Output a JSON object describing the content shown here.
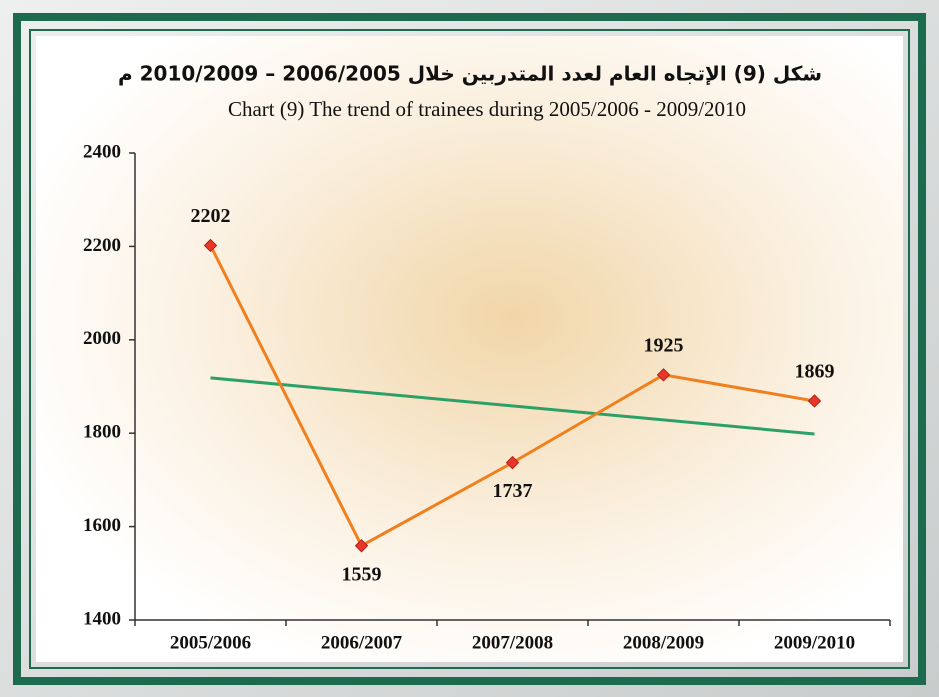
{
  "chart_data": {
    "type": "line",
    "title": "شكل (9) الإتجاه العام لعدد المتدربين خلال 2006/2005 – 2010/2009 م",
    "subtitle": "Chart (9) The trend  of trainees  during  2005/2006 - 2009/2010",
    "categories": [
      "2005/2006",
      "2006/2007",
      "2007/2008",
      "2008/2009",
      "2009/2010"
    ],
    "series": [
      {
        "name": "Trainees",
        "color": "#f07f1e",
        "values": [
          2202,
          1559,
          1737,
          1925,
          1869
        ]
      }
    ],
    "trendline": true,
    "trendline_color": "#2ca066",
    "ylim": [
      1400,
      2400
    ],
    "yticks": [
      1400,
      1600,
      1800,
      2000,
      2200,
      2400
    ]
  }
}
